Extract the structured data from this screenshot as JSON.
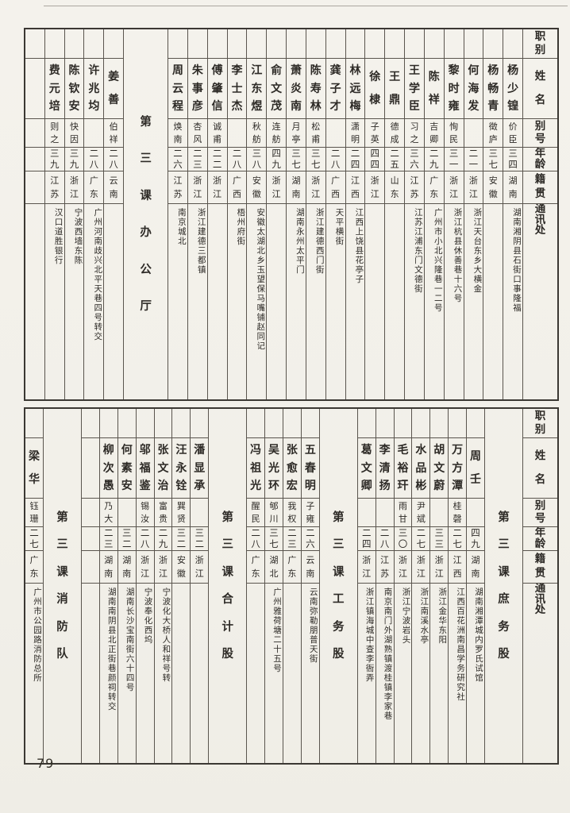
{
  "page": {
    "number": "79"
  },
  "colors": {
    "paper": "#f3f1ea",
    "ink": "#2d2a26",
    "rule_line": "#5a554e"
  },
  "header_labels": [
    "职别",
    "姓名",
    "别号",
    "年龄",
    "籍贯",
    "通讯处"
  ],
  "tables": [
    {
      "section": "第三课办公厅",
      "columns": [
        {
          "type": "person",
          "title": "",
          "name": "杨少锽",
          "alias": "价臣",
          "age": "三四",
          "origin": "湖南",
          "address": "湖南湘阴县石街口事隆福"
        },
        {
          "type": "person",
          "title": "",
          "name": "杨畅青",
          "alias": "徵庐",
          "age": "三七",
          "origin": "安徽",
          "address": ""
        },
        {
          "type": "person",
          "title": "",
          "name": "何海发",
          "alias": "",
          "age": "二一",
          "origin": "浙江",
          "address": "浙江天台东乡大横金"
        },
        {
          "type": "person",
          "title": "",
          "name": "黎时雍",
          "alias": "恂民",
          "age": "三一",
          "origin": "浙江",
          "address": "浙江杭县休善巷十六号"
        },
        {
          "type": "person",
          "title": "",
          "name": "陈祥",
          "alias": "吉卿",
          "age": "二九",
          "origin": "广东",
          "address": "广州市小北兴隆巷一二号"
        },
        {
          "type": "person",
          "title": "",
          "name": "王学臣",
          "alias": "习之",
          "age": "三六",
          "origin": "江苏",
          "address": "江苏江浦东门文德街"
        },
        {
          "type": "person",
          "title": "",
          "name": "王鼎",
          "alias": "德成",
          "age": "二五",
          "origin": "山东",
          "address": ""
        },
        {
          "type": "person",
          "title": "",
          "name": "徐棣",
          "alias": "子英",
          "age": "四四",
          "origin": "浙江",
          "address": ""
        },
        {
          "type": "person",
          "title": "",
          "name": "林远梅",
          "alias": "潇明",
          "age": "二四",
          "origin": "江西",
          "address": "江西上饶县花亭子"
        },
        {
          "type": "person",
          "title": "",
          "name": "龚子才",
          "alias": "",
          "age": "二八",
          "origin": "广西",
          "address": "天平横街"
        },
        {
          "type": "person",
          "title": "",
          "name": "陈寿林",
          "alias": "松甫",
          "age": "三七",
          "origin": "浙江",
          "address": "浙江建德西门街"
        },
        {
          "type": "person",
          "title": "",
          "name": "萧炎南",
          "alias": "月亭",
          "age": "三七",
          "origin": "湖南",
          "address": "湖南永州太平门"
        },
        {
          "type": "person",
          "title": "",
          "name": "俞文茂",
          "alias": "连舫",
          "age": "四九",
          "origin": "浙江",
          "address": ""
        },
        {
          "type": "person",
          "title": "",
          "name": "江东煜",
          "alias": "秋舫",
          "age": "三八",
          "origin": "安徽",
          "address": "安徽太湖北乡玉望保马嘴铺赵同记"
        },
        {
          "type": "person",
          "title": "",
          "name": "李士杰",
          "alias": "",
          "age": "二八",
          "origin": "广西",
          "address": "梧州府街"
        },
        {
          "type": "person",
          "title": "",
          "name": "傅肇信",
          "alias": "诚甫",
          "age": "二二",
          "origin": "浙江",
          "address": ""
        },
        {
          "type": "person",
          "title": "",
          "name": "朱事彦",
          "alias": "杏风",
          "age": "二三",
          "origin": "浙江",
          "address": "浙江建德三都镇"
        },
        {
          "type": "person",
          "title": "",
          "name": "周云程",
          "alias": "焕南",
          "age": "二六",
          "origin": "江苏",
          "address": "南京城北"
        },
        {
          "type": "label",
          "text": "第三课办公厅"
        },
        {
          "type": "person",
          "title": "",
          "name": "姜善",
          "alias": "伯祥",
          "age": "二八",
          "origin": "云南",
          "address": ""
        },
        {
          "type": "person",
          "title": "",
          "name": "许兆均",
          "alias": "",
          "age": "二八",
          "origin": "广东",
          "address": "广州河南歧兴北平天巷四号转交"
        },
        {
          "type": "person",
          "title": "",
          "name": "陈钦安",
          "alias": "快因",
          "age": "三九",
          "origin": "浙江",
          "address": "宁波西墙东陈"
        },
        {
          "type": "person",
          "title": "",
          "name": "费元培",
          "alias": "则之",
          "age": "三九",
          "origin": "江苏",
          "address": "汉口道胜银行"
        },
        {
          "type": "empty"
        }
      ]
    },
    {
      "section": "第三课庶务股 / 第三课工务股 / 第三课合计股 / 第三课消防队",
      "columns": [
        {
          "type": "label",
          "text": "第三课庶务股"
        },
        {
          "type": "person",
          "title": "",
          "name": "周壬",
          "alias": "",
          "age": "四九",
          "origin": "湖南",
          "address": "湖南湘潭城内罗氏试馆"
        },
        {
          "type": "person",
          "title": "",
          "name": "万方潭",
          "alias": "桂磬",
          "age": "二七",
          "origin": "江西",
          "address": "江西百花洲南昌学务研究社"
        },
        {
          "type": "person",
          "title": "",
          "name": "胡文蔚",
          "alias": "",
          "age": "三三",
          "origin": "浙江",
          "address": "浙江金华东阳"
        },
        {
          "type": "person",
          "title": "",
          "name": "水品彬",
          "alias": "尹斌",
          "age": "二七",
          "origin": "浙江",
          "address": "浙江南溪水亭"
        },
        {
          "type": "person",
          "title": "",
          "name": "毛裕玕",
          "alias": "雨甘",
          "age": "三〇",
          "origin": "浙江",
          "address": "浙江宁波岩头"
        },
        {
          "type": "person",
          "title": "",
          "name": "李清扬",
          "alias": "",
          "age": "二八",
          "origin": "江苏",
          "address": "南京南门外湖熟镇渡桂镇李家巷"
        },
        {
          "type": "person",
          "title": "",
          "name": "葛文卿",
          "alias": "",
          "age": "二四",
          "origin": "浙江",
          "address": "浙江镇海城中查李衙弄"
        },
        {
          "type": "label",
          "text": "第三课工务股"
        },
        {
          "type": "person",
          "title": "",
          "name": "五春明",
          "alias": "子雍",
          "age": "二六",
          "origin": "云南",
          "address": "云南弥勒朋普天街"
        },
        {
          "type": "person",
          "title": "",
          "name": "张愈宏",
          "alias": "我权",
          "age": "二三",
          "origin": "广东",
          "address": ""
        },
        {
          "type": "person",
          "title": "",
          "name": "吴光环",
          "alias": "郇川",
          "age": "三七",
          "origin": "湖北",
          "address": "广州雅荷塘二十五号"
        },
        {
          "type": "person",
          "title": "",
          "name": "冯祖光",
          "alias": "醒民",
          "age": "二八",
          "origin": "广东",
          "address": ""
        },
        {
          "type": "label",
          "text": "第三课合计股"
        },
        {
          "type": "person",
          "title": "",
          "name": "潘显承",
          "alias": "",
          "age": "三二",
          "origin": "浙江",
          "address": ""
        },
        {
          "type": "person",
          "title": "",
          "name": "汪永铨",
          "alias": "巽贤",
          "age": "三二",
          "origin": "安徽",
          "address": ""
        },
        {
          "type": "person",
          "title": "",
          "name": "张文治",
          "alias": "富贵",
          "age": "二九",
          "origin": "浙江",
          "address": "宁波化大桥人和祥号转"
        },
        {
          "type": "person",
          "title": "",
          "name": "邬福鉴",
          "alias": "锡汝",
          "age": "二八",
          "origin": "浙江",
          "address": "宁波奉化西坞"
        },
        {
          "type": "person",
          "title": "",
          "name": "何素安",
          "alias": "",
          "age": "三二",
          "origin": "湖南",
          "address": "湖南长沙宝南街六十四号"
        },
        {
          "type": "person",
          "title": "",
          "name": "柳次愚",
          "alias": "乃大",
          "age": "二三",
          "origin": "湖南",
          "address": "湖南南阴县北正街巷颜祠转交"
        },
        {
          "type": "empty"
        },
        {
          "type": "label",
          "text": "第三课消防队"
        },
        {
          "type": "person",
          "title": "",
          "name": "梁华",
          "alias": "钰珊",
          "age": "二七",
          "origin": "广东",
          "address": "广州市公园路消防总所"
        }
      ]
    }
  ]
}
